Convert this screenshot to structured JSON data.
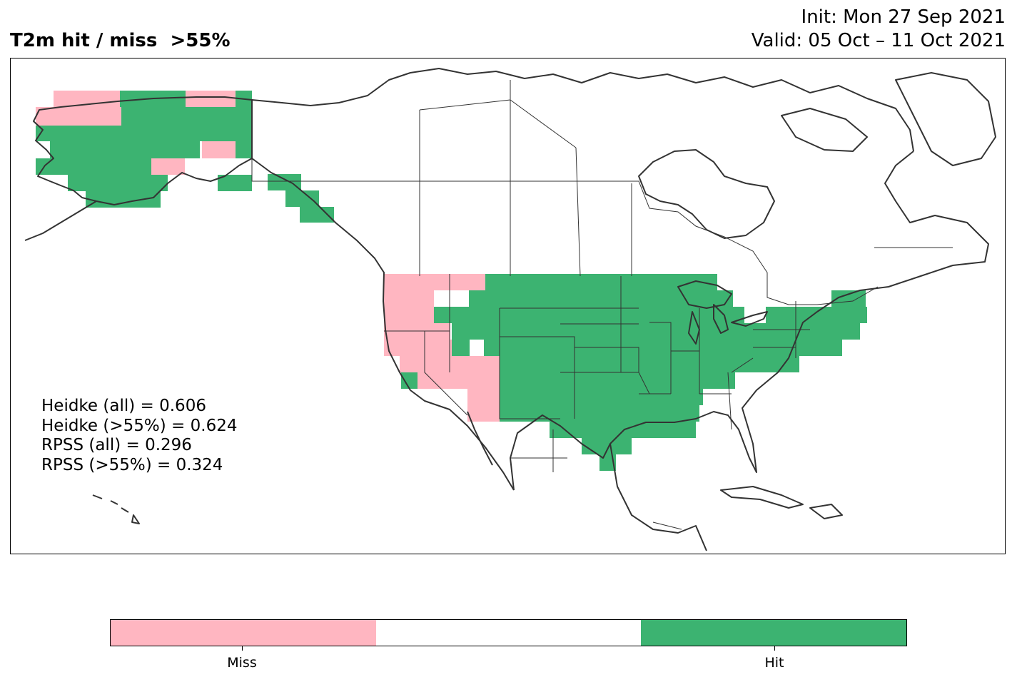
{
  "header": {
    "title": "T2m hit / miss  >55%",
    "init": "Init: Mon 27 Sep 2021",
    "valid": "Valid: 05 Oct – 11 Oct 2021"
  },
  "stats": [
    "Heidke (all) = 0.606",
    "Heidke (>55%) = 0.624",
    "RPSS (all) = 0.296",
    "RPSS (>55%) = 0.324"
  ],
  "colors": {
    "miss": "#ffb6c1",
    "neutral": "#ffffff",
    "hit": "#3cb371",
    "coast": "#333333"
  },
  "colorbar": {
    "labels": [
      "Miss",
      "Hit"
    ]
  }
}
